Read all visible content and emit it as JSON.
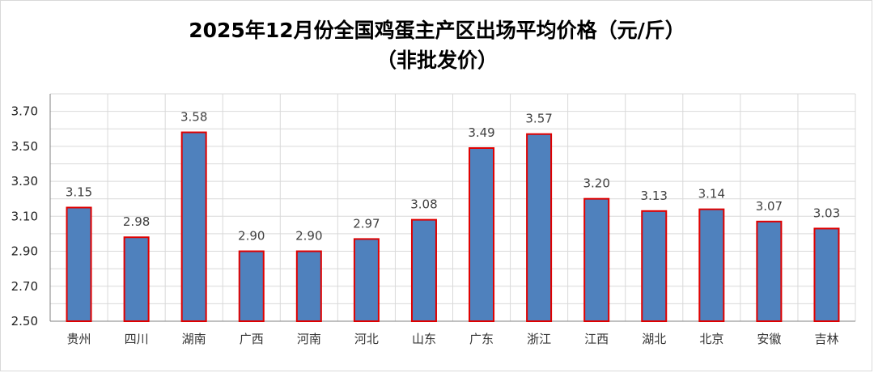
{
  "chart_data": {
    "type": "bar",
    "title": "2025年12月份全国鸡蛋主产区出场平均价格（元/斤）",
    "subtitle": "（非批发价）",
    "categories": [
      "贵州",
      "四川",
      "湖南",
      "广西",
      "河南",
      "河北",
      "山东",
      "广东",
      "浙江",
      "江西",
      "湖北",
      "北京",
      "安徽",
      "吉林"
    ],
    "values": [
      3.15,
      2.98,
      3.58,
      2.9,
      2.9,
      2.97,
      3.08,
      3.49,
      3.57,
      3.2,
      3.13,
      3.14,
      3.07,
      3.03
    ],
    "y_ticks": [
      "2.50",
      "2.70",
      "2.90",
      "3.10",
      "3.30",
      "3.50",
      "3.70"
    ],
    "ylim": [
      2.5,
      3.8
    ],
    "grid": true,
    "bar_fill": "#4f81bd",
    "bar_border": "#e00000",
    "grid_color": "#d9d9d9"
  }
}
